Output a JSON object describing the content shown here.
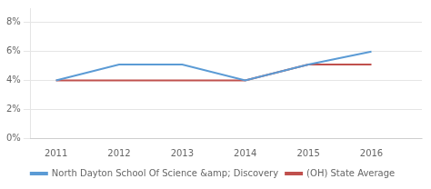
{
  "chart_data": {
    "type": "line",
    "x": [
      2011,
      2012,
      2013,
      2014,
      2015,
      2016
    ],
    "series": [
      {
        "name": "North Dayton School Of Science &amp; Discovery",
        "color": "#5b9bd5",
        "values": [
          0.04,
          0.051,
          0.051,
          0.04,
          0.051,
          0.06
        ]
      },
      {
        "name": "(OH) State Average",
        "color": "#c0504d",
        "values": [
          0.04,
          0.04,
          0.04,
          0.04,
          0.051,
          0.051
        ]
      }
    ],
    "xlim": [
      2010.6,
      2016.8
    ],
    "xticks": [
      2011,
      2012,
      2013,
      2014,
      2015,
      2016
    ],
    "ylim": [
      0,
      0.09
    ],
    "yticks": [
      {
        "value": 0,
        "label": "0%"
      },
      {
        "value": 0.02,
        "label": "2%"
      },
      {
        "value": 0.04,
        "label": "4%"
      },
      {
        "value": 0.06,
        "label": "6%"
      },
      {
        "value": 0.08,
        "label": "8%"
      }
    ],
    "grid": true,
    "legend": "bottom"
  }
}
